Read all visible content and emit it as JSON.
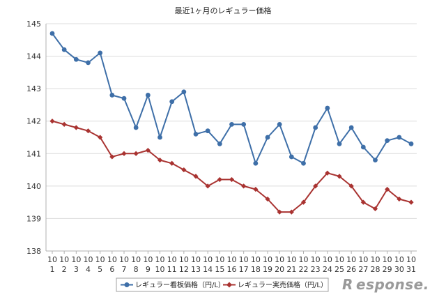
{
  "chart_data": {
    "type": "line",
    "title": "最近1ヶ月のレギュラー価格",
    "categories": [
      [
        "10",
        "1"
      ],
      [
        "10",
        "2"
      ],
      [
        "10",
        "3"
      ],
      [
        "10",
        "4"
      ],
      [
        "10",
        "5"
      ],
      [
        "10",
        "6"
      ],
      [
        "10",
        "7"
      ],
      [
        "10",
        "8"
      ],
      [
        "10",
        "9"
      ],
      [
        "10",
        "10"
      ],
      [
        "10",
        "11"
      ],
      [
        "10",
        "12"
      ],
      [
        "10",
        "13"
      ],
      [
        "10",
        "14"
      ],
      [
        "10",
        "15"
      ],
      [
        "10",
        "16"
      ],
      [
        "10",
        "17"
      ],
      [
        "10",
        "18"
      ],
      [
        "10",
        "19"
      ],
      [
        "10",
        "20"
      ],
      [
        "10",
        "21"
      ],
      [
        "10",
        "22"
      ],
      [
        "10",
        "23"
      ],
      [
        "10",
        "24"
      ],
      [
        "10",
        "25"
      ],
      [
        "10",
        "26"
      ],
      [
        "10",
        "27"
      ],
      [
        "10",
        "28"
      ],
      [
        "10",
        "29"
      ],
      [
        "10",
        "30"
      ],
      [
        "10",
        "31"
      ]
    ],
    "ylim": [
      138,
      145
    ],
    "yticks": [
      "138",
      "139",
      "140",
      "141",
      "142",
      "143",
      "144",
      "145"
    ],
    "grid": true,
    "legend_position": "bottom",
    "series": [
      {
        "name": "レギュラー看板価格（円/L）",
        "color": "#3e6fa8",
        "marker": "circle",
        "values": [
          144.7,
          144.2,
          143.9,
          143.8,
          144.1,
          142.8,
          142.7,
          141.8,
          142.8,
          141.5,
          142.6,
          142.9,
          141.6,
          141.7,
          141.3,
          141.9,
          141.9,
          140.7,
          141.5,
          141.9,
          140.9,
          140.7,
          141.8,
          142.4,
          141.3,
          141.8,
          141.2,
          140.8,
          141.4,
          141.5,
          141.3
        ]
      },
      {
        "name": "レギュラー実売価格（円/L）",
        "color": "#a93331",
        "marker": "diamond",
        "values": [
          142.0,
          141.9,
          141.8,
          141.7,
          141.5,
          140.9,
          141.0,
          141.0,
          141.1,
          140.8,
          140.7,
          140.5,
          140.3,
          140.0,
          140.2,
          140.2,
          140.0,
          139.9,
          139.6,
          139.2,
          139.2,
          139.5,
          140.0,
          140.4,
          140.3,
          140.0,
          139.5,
          139.3,
          139.9,
          139.6,
          139.5
        ]
      }
    ]
  },
  "watermark": {
    "icon": "response-r-logo",
    "text": "esponse."
  }
}
